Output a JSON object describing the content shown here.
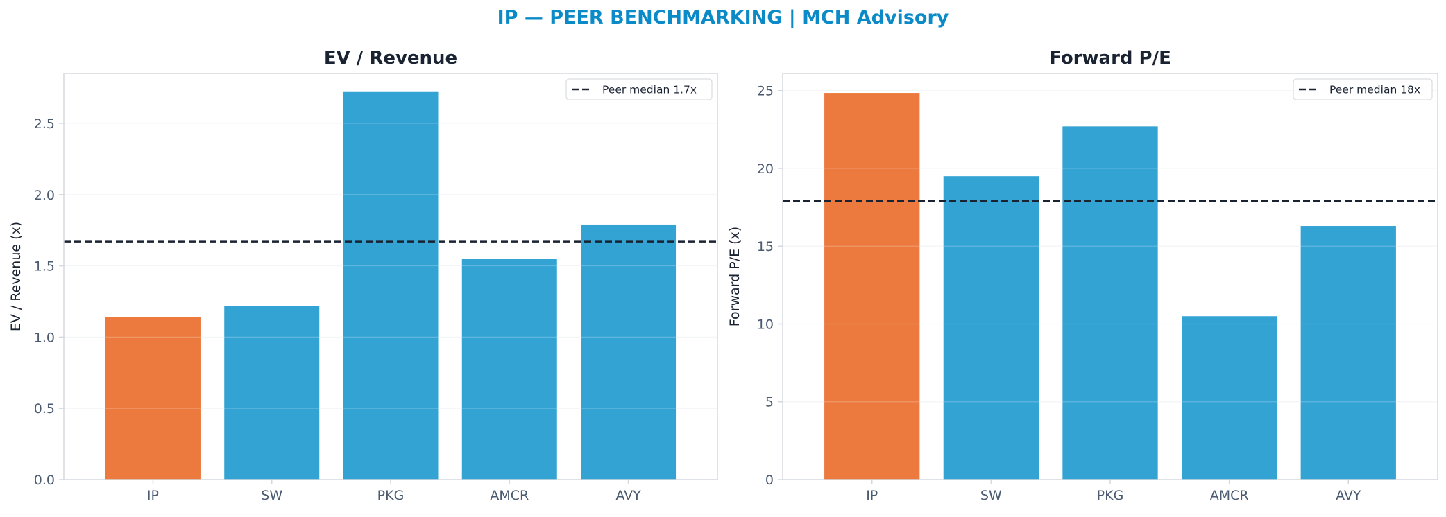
{
  "suptitle": "IP — PEER BENCHMARKING | MCH Advisory",
  "colors": {
    "title": "#0b8ac8",
    "heading": "#1a2332",
    "highlight": "#ec7a3f",
    "peer": "#33a3d4",
    "median_line": "#1a2332",
    "tick_text": "#4a5a70",
    "axis_border": "#d5d9de",
    "grid": "#f0f2f4"
  },
  "chart_data": [
    {
      "type": "bar",
      "title": "EV / Revenue",
      "xlabel": "",
      "ylabel": "EV / Revenue (x)",
      "categories": [
        "IP",
        "SW",
        "PKG",
        "AMCR",
        "AVY"
      ],
      "values": [
        1.14,
        1.22,
        2.72,
        1.55,
        1.79
      ],
      "highlight_category": "IP",
      "ylim": [
        0,
        2.85
      ],
      "yticks": [
        0.0,
        0.5,
        1.0,
        1.5,
        2.0,
        2.5
      ],
      "ytick_labels": [
        "0.0",
        "0.5",
        "1.0",
        "1.5",
        "2.0",
        "2.5"
      ],
      "grid": true,
      "reference_line": {
        "value": 1.67,
        "style": "dashed",
        "label": "Peer median 1.7x"
      },
      "legend_position": "top-right"
    },
    {
      "type": "bar",
      "title": "Forward P/E",
      "xlabel": "",
      "ylabel": "Forward P/E (x)",
      "categories": [
        "IP",
        "SW",
        "PKG",
        "AMCR",
        "AVY"
      ],
      "values": [
        24.85,
        19.5,
        22.7,
        10.5,
        16.3
      ],
      "highlight_category": "IP",
      "ylim": [
        0,
        26.1
      ],
      "yticks": [
        0,
        5,
        10,
        15,
        20,
        25
      ],
      "ytick_labels": [
        "0",
        "5",
        "10",
        "15",
        "20",
        "25"
      ],
      "grid": true,
      "reference_line": {
        "value": 17.9,
        "style": "dashed",
        "label": "Peer median 18x"
      },
      "legend_position": "top-right"
    }
  ]
}
